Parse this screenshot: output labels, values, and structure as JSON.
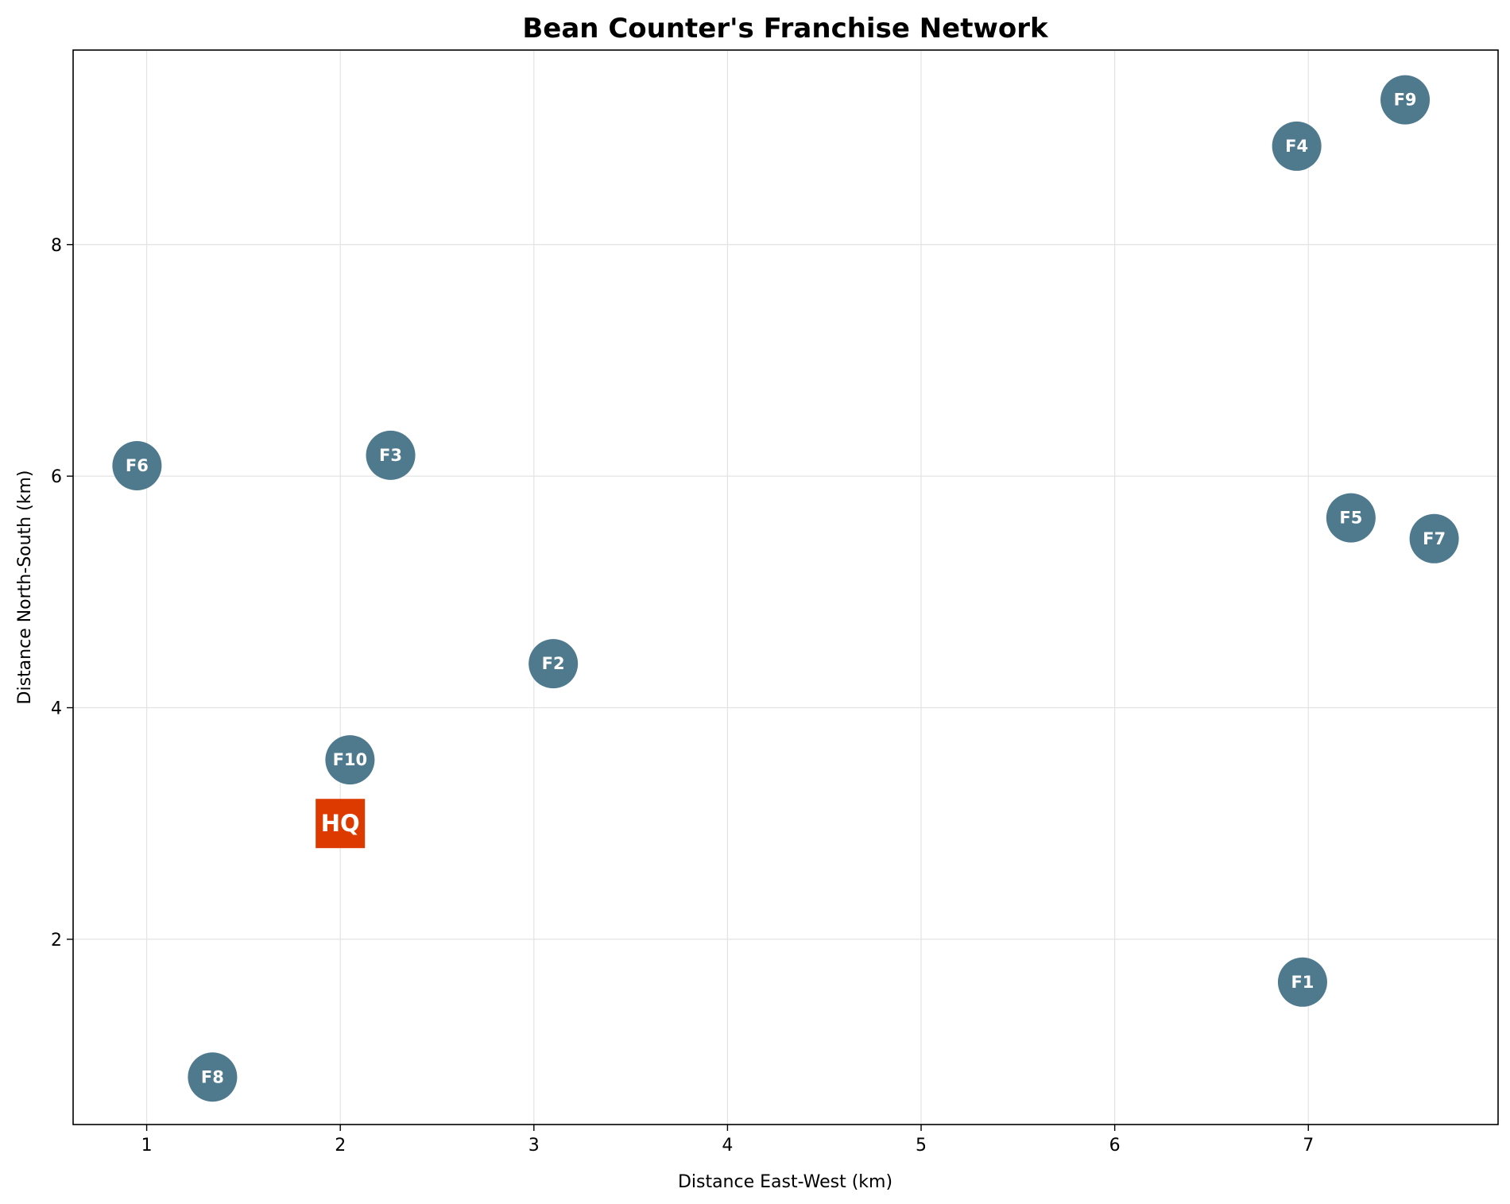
{
  "chart_data": {
    "type": "scatter",
    "title": "Bean Counter's Franchise Network",
    "xlabel": "Distance East-West (km)",
    "ylabel": "Distance North-South (km)",
    "xlim": [
      0.62,
      7.98
    ],
    "ylim": [
      0.4,
      9.68
    ],
    "xticks": [
      1,
      2,
      3,
      4,
      5,
      6,
      7
    ],
    "yticks": [
      2,
      4,
      6,
      8
    ],
    "grid": true,
    "colors": {
      "franchise": "#4f7a8e",
      "hq": "#dd3a00",
      "label": "#ffffff"
    },
    "franchises": [
      {
        "label": "F1",
        "x": 6.97,
        "y": 1.63
      },
      {
        "label": "F2",
        "x": 3.1,
        "y": 4.38
      },
      {
        "label": "F3",
        "x": 2.26,
        "y": 6.18
      },
      {
        "label": "F4",
        "x": 6.94,
        "y": 8.85
      },
      {
        "label": "F5",
        "x": 7.22,
        "y": 5.64
      },
      {
        "label": "F6",
        "x": 0.95,
        "y": 6.09
      },
      {
        "label": "F7",
        "x": 7.65,
        "y": 5.46
      },
      {
        "label": "F8",
        "x": 1.34,
        "y": 0.81
      },
      {
        "label": "F9",
        "x": 7.5,
        "y": 9.25
      },
      {
        "label": "F10",
        "x": 2.05,
        "y": 3.55
      }
    ],
    "hq": {
      "label": "HQ",
      "x": 2.0,
      "y": 3.0
    }
  }
}
